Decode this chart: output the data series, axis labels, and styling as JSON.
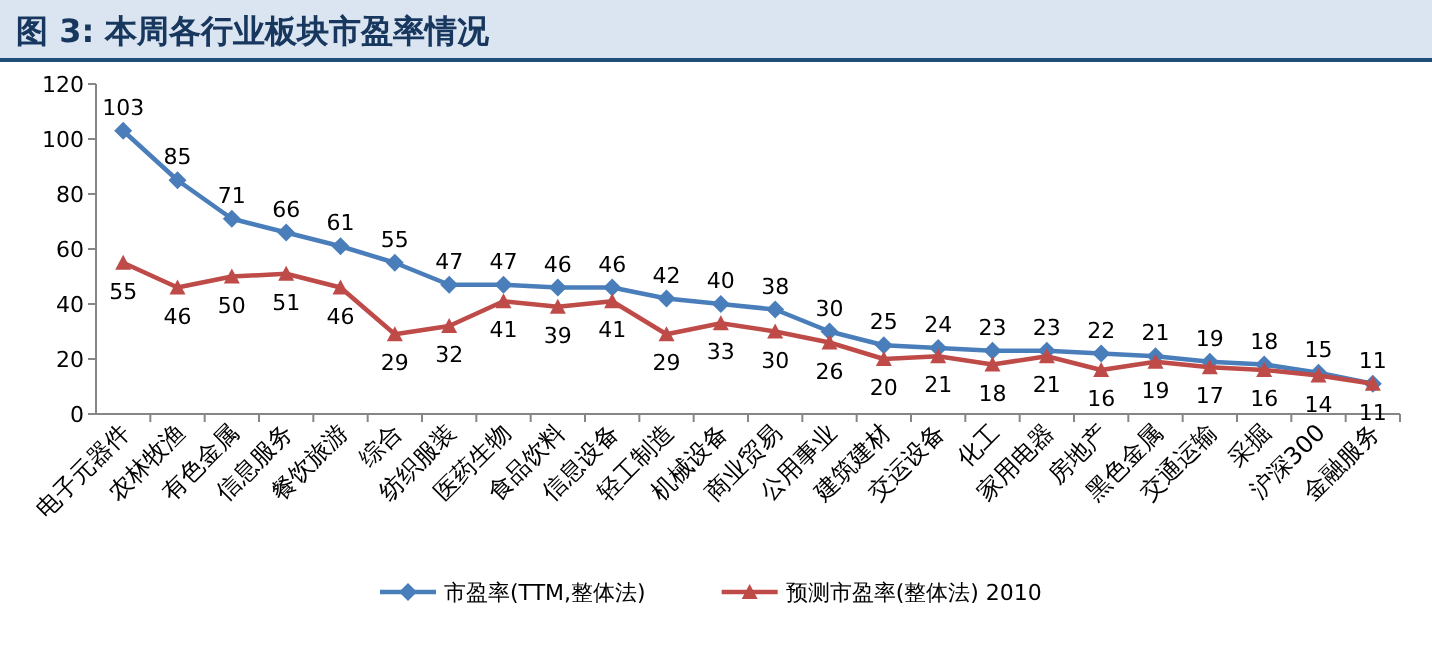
{
  "chart_data": {
    "type": "line",
    "title": "图 3:  本周各行业板块市盈率情况",
    "categories": [
      "电子元器件",
      "农林牧渔",
      "有色金属",
      "信息服务",
      "餐饮旅游",
      "综合",
      "纺织服装",
      "医药生物",
      "食品饮料",
      "信息设备",
      "轻工制造",
      "机械设备",
      "商业贸易",
      "公用事业",
      "建筑建材",
      "交运设备",
      "化工",
      "家用电器",
      "房地产",
      "黑色金属",
      "交通运输",
      "采掘",
      "沪深300",
      "金融服务"
    ],
    "series": [
      {
        "name": "市盈率(TTM,整体法)",
        "color": "#4a7ebb",
        "marker": "diamond",
        "values": [
          103,
          85,
          71,
          66,
          61,
          55,
          47,
          47,
          46,
          46,
          42,
          40,
          38,
          30,
          25,
          24,
          23,
          23,
          22,
          21,
          19,
          18,
          15,
          11
        ]
      },
      {
        "name": "预测市盈率(整体法) 2010",
        "color": "#be4b48",
        "marker": "triangle",
        "values": [
          55,
          46,
          50,
          51,
          46,
          29,
          32,
          41,
          39,
          41,
          29,
          33,
          30,
          26,
          20,
          21,
          18,
          21,
          16,
          19,
          17,
          16,
          14,
          11
        ]
      }
    ],
    "ylim": [
      0,
      120
    ],
    "yticks": [
      0,
      20,
      40,
      60,
      80,
      100,
      120
    ],
    "data_labels": true,
    "legend": "bottom",
    "line_style": "solid"
  }
}
